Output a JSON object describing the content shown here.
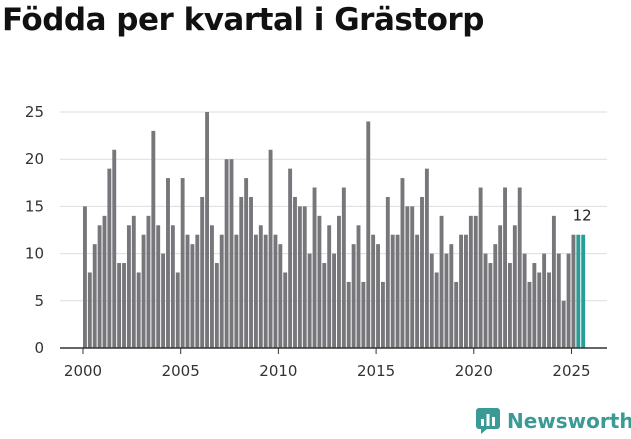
{
  "chart_data": {
    "type": "bar",
    "title": "Födda per kvartal i Grästorp",
    "xlabel": "",
    "ylabel": "",
    "ylim": [
      0,
      25
    ],
    "y_ticks": [
      "0",
      "5",
      "10",
      "15",
      "20",
      "25"
    ],
    "x_ticks": [
      "2000",
      "2005",
      "2010",
      "2015",
      "2020",
      "2025"
    ],
    "categories": [
      "2000 Q1",
      "2000 Q2",
      "2000 Q3",
      "2000 Q4",
      "2001 Q1",
      "2001 Q2",
      "2001 Q3",
      "2001 Q4",
      "2002 Q1",
      "2002 Q2",
      "2002 Q3",
      "2002 Q4",
      "2003 Q1",
      "2003 Q2",
      "2003 Q3",
      "2003 Q4",
      "2004 Q1",
      "2004 Q2",
      "2004 Q3",
      "2004 Q4",
      "2005 Q1",
      "2005 Q2",
      "2005 Q3",
      "2005 Q4",
      "2006 Q1",
      "2006 Q2",
      "2006 Q3",
      "2006 Q4",
      "2007 Q1",
      "2007 Q2",
      "2007 Q3",
      "2007 Q4",
      "2008 Q1",
      "2008 Q2",
      "2008 Q3",
      "2008 Q4",
      "2009 Q1",
      "2009 Q2",
      "2009 Q3",
      "2009 Q4",
      "2010 Q1",
      "2010 Q2",
      "2010 Q3",
      "2010 Q4",
      "2011 Q1",
      "2011 Q2",
      "2011 Q3",
      "2011 Q4",
      "2012 Q1",
      "2012 Q2",
      "2012 Q3",
      "2012 Q4",
      "2013 Q1",
      "2013 Q2",
      "2013 Q3",
      "2013 Q4",
      "2014 Q1",
      "2014 Q2",
      "2014 Q3",
      "2014 Q4",
      "2015 Q1",
      "2015 Q2",
      "2015 Q3",
      "2015 Q4",
      "2016 Q1",
      "2016 Q2",
      "2016 Q3",
      "2016 Q4",
      "2017 Q1",
      "2017 Q2",
      "2017 Q3",
      "2017 Q4",
      "2018 Q1",
      "2018 Q2",
      "2018 Q3",
      "2018 Q4",
      "2019 Q1",
      "2019 Q2",
      "2019 Q3",
      "2019 Q4",
      "2020 Q1",
      "2020 Q2",
      "2020 Q3",
      "2020 Q4",
      "2021 Q1",
      "2021 Q2",
      "2021 Q3",
      "2021 Q4",
      "2022 Q1",
      "2022 Q2",
      "2022 Q3",
      "2022 Q4",
      "2023 Q1",
      "2023 Q2",
      "2023 Q3",
      "2023 Q4",
      "2024 Q1",
      "2024 Q2",
      "2024 Q3",
      "2024 Q4",
      "2025 Q1",
      "2025 Q2",
      "2025 Q3"
    ],
    "values": [
      15,
      8,
      11,
      13,
      14,
      19,
      21,
      9,
      9,
      13,
      14,
      8,
      12,
      14,
      23,
      13,
      10,
      18,
      13,
      8,
      18,
      12,
      11,
      12,
      16,
      25,
      13,
      9,
      12,
      20,
      20,
      12,
      16,
      18,
      16,
      12,
      13,
      12,
      21,
      12,
      11,
      8,
      19,
      16,
      15,
      15,
      10,
      17,
      14,
      9,
      13,
      10,
      14,
      17,
      7,
      11,
      13,
      7,
      24,
      12,
      11,
      7,
      16,
      12,
      12,
      18,
      15,
      15,
      12,
      16,
      19,
      10,
      8,
      14,
      10,
      11,
      7,
      12,
      12,
      14,
      14,
      17,
      10,
      9,
      11,
      13,
      17,
      9,
      13,
      17,
      10,
      7,
      9,
      8,
      10,
      8,
      14,
      10,
      5,
      10,
      12,
      12,
      12
    ],
    "highlight_last": 2,
    "last_value_label": "12",
    "colors": {
      "bar": "#77767b",
      "highlight": "#2a9d96",
      "grid": "#dddddd",
      "axis": "#333333"
    }
  },
  "brand": {
    "name": "Newsworthy",
    "icon": "newsworthy-logo-icon",
    "color": "#3a9a95"
  }
}
